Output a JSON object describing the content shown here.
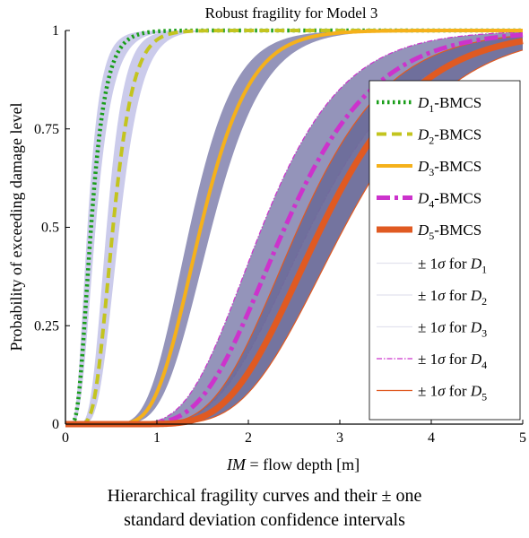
{
  "chart_data": {
    "type": "line",
    "title": "Robust fragility for Model 3",
    "xlabel": "IM = flow depth [m]",
    "xlabel_parts": {
      "italic": "IM",
      "rest": " = flow depth [m]"
    },
    "ylabel": "Probability of exceeding damage level",
    "xlim": [
      0,
      5
    ],
    "ylim": [
      0,
      1
    ],
    "xticks": [
      0,
      1,
      2,
      3,
      4,
      5
    ],
    "yticks": [
      0,
      0.25,
      0.5,
      0.75,
      1
    ],
    "xtick_labels": [
      "0",
      "1",
      "2",
      "3",
      "4",
      "5"
    ],
    "ytick_labels": [
      "0",
      "0.25",
      "0.5",
      "0.75",
      "1"
    ],
    "grid": false,
    "legend_position": "right",
    "curve_model": "lognormal CDF",
    "series": [
      {
        "name": "D1-BMCS",
        "sub": "1",
        "color": "#1a9e1a",
        "dash": "dotted",
        "median": 0.28,
        "beta": 0.45,
        "band_low_median": 0.24,
        "band_high_median": 0.33,
        "band_color": "#c8c8ea"
      },
      {
        "name": "D2-BMCS",
        "sub": "2",
        "color": "#c3c41f",
        "dash": "dashed",
        "median": 0.52,
        "beta": 0.33,
        "band_low_median": 0.45,
        "band_high_median": 0.59,
        "band_color": "#c8c8ea"
      },
      {
        "name": "D3-BMCS",
        "sub": "3",
        "color": "#f5b11b",
        "dash": "solid",
        "median": 1.48,
        "beta": 0.28,
        "band_low_median": 1.36,
        "band_high_median": 1.6,
        "band_color": "#8e8eb6"
      },
      {
        "name": "D4-BMCS",
        "sub": "4",
        "color": "#cc33cc",
        "dash": "dashdot",
        "median": 2.4,
        "beta": 0.32,
        "band_low_median": 2.15,
        "band_high_median": 2.68,
        "band_color": "#8e8eb6"
      },
      {
        "name": "D5-BMCS",
        "sub": "5",
        "color": "#e05a22",
        "dash": "solid",
        "median": 2.8,
        "beta": 0.3,
        "band_low_median": 2.55,
        "band_high_median": 3.05,
        "band_color": "#6d6d9a"
      }
    ],
    "band_legend": [
      {
        "text": "± 1σ for D1",
        "prefix": "± 1",
        "sigma": "σ",
        "mid": " for ",
        "d": "D",
        "sub": "1",
        "color": "#e2e2ee"
      },
      {
        "text": "± 1σ for D2",
        "prefix": "± 1",
        "sigma": "σ",
        "mid": " for ",
        "d": "D",
        "sub": "2",
        "color": "#e2e2ee"
      },
      {
        "text": "± 1σ for D3",
        "prefix": "± 1",
        "sigma": "σ",
        "mid": " for ",
        "d": "D",
        "sub": "3",
        "color": "#e2e2ee"
      },
      {
        "text": "± 1σ for D4",
        "prefix": "± 1",
        "sigma": "σ",
        "mid": " for ",
        "d": "D",
        "sub": "4",
        "color": "#cc33cc"
      },
      {
        "text": "± 1σ for D5",
        "prefix": "± 1",
        "sigma": "σ",
        "mid": " for ",
        "d": "D",
        "sub": "5",
        "color": "#e05a22"
      }
    ]
  },
  "caption": {
    "line1": "Hierarchical fragility curves and their ± one",
    "line2": "standard deviation confidence intervals"
  }
}
